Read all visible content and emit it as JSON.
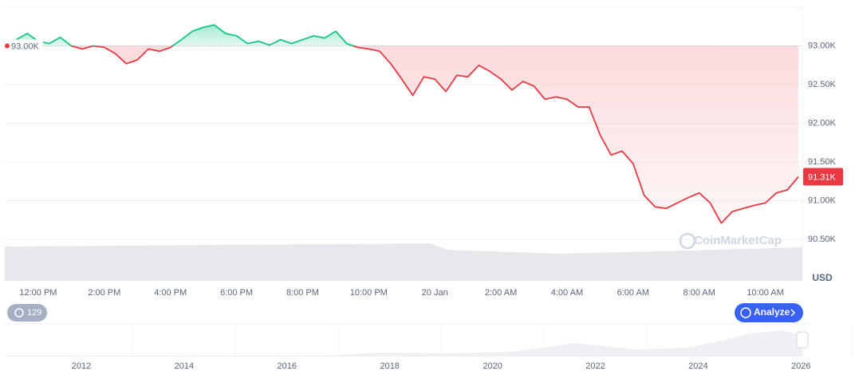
{
  "chart_data": {
    "type": "line",
    "currency": "USD",
    "watermark": "CoinMarketCap",
    "badge_count": "129",
    "analyze_button": "Analyze",
    "baseline": {
      "value": 93000,
      "label": "93.00K"
    },
    "current_price": {
      "value": 91310,
      "label": "91.31K"
    },
    "categories": [
      null,
      null,
      null,
      "12:00 PM",
      null,
      null,
      null,
      null,
      null,
      "2:00 PM",
      null,
      null,
      null,
      null,
      null,
      "4:00 PM",
      null,
      null,
      null,
      null,
      null,
      "6:00 PM",
      null,
      null,
      null,
      null,
      null,
      "8:00 PM",
      null,
      null,
      null,
      null,
      null,
      "10:00 PM",
      null,
      null,
      null,
      null,
      null,
      "20 Jan",
      null,
      null,
      null,
      null,
      null,
      "2:00 AM",
      null,
      null,
      null,
      null,
      null,
      "4:00 AM",
      null,
      null,
      null,
      null,
      null,
      "6:00 AM",
      null,
      null,
      null,
      null,
      null,
      "8:00 AM",
      null,
      null,
      null,
      null,
      null,
      "10:00 AM",
      null,
      null,
      null
    ],
    "values": [
      92980,
      93080,
      93160,
      93060,
      93030,
      93110,
      93000,
      92960,
      93000,
      92980,
      92900,
      92770,
      92820,
      92960,
      92930,
      92980,
      93080,
      93190,
      93240,
      93270,
      93160,
      93130,
      93030,
      93060,
      93010,
      93080,
      93030,
      93080,
      93130,
      93100,
      93190,
      93030,
      92980,
      92960,
      92930,
      92770,
      92570,
      92360,
      92600,
      92570,
      92410,
      92620,
      92600,
      92750,
      92670,
      92570,
      92430,
      92540,
      92480,
      92310,
      92340,
      92310,
      92210,
      92210,
      91850,
      91590,
      91640,
      91480,
      91070,
      90920,
      90900,
      90970,
      91040,
      91100,
      90970,
      90710,
      90860,
      90900,
      90940,
      90970,
      91100,
      91140,
      91310
    ],
    "color_up": "#16c784",
    "color_down": "#ea3943",
    "ylim": [
      89985,
      93500
    ],
    "yticks": [
      {
        "value": 93000,
        "label": "93.00K"
      },
      {
        "value": 92500,
        "label": "92.50K"
      },
      {
        "value": 92000,
        "label": "92.00K"
      },
      {
        "value": 91500,
        "label": "91.50K"
      },
      {
        "value": 91000,
        "label": "91.00K"
      },
      {
        "value": 90500,
        "label": "90.50K"
      }
    ],
    "grid": true,
    "navigator_ticks": [
      "2012",
      "2014",
      "2016",
      "2018",
      "2020",
      "2022",
      "2024",
      "2026"
    ]
  }
}
